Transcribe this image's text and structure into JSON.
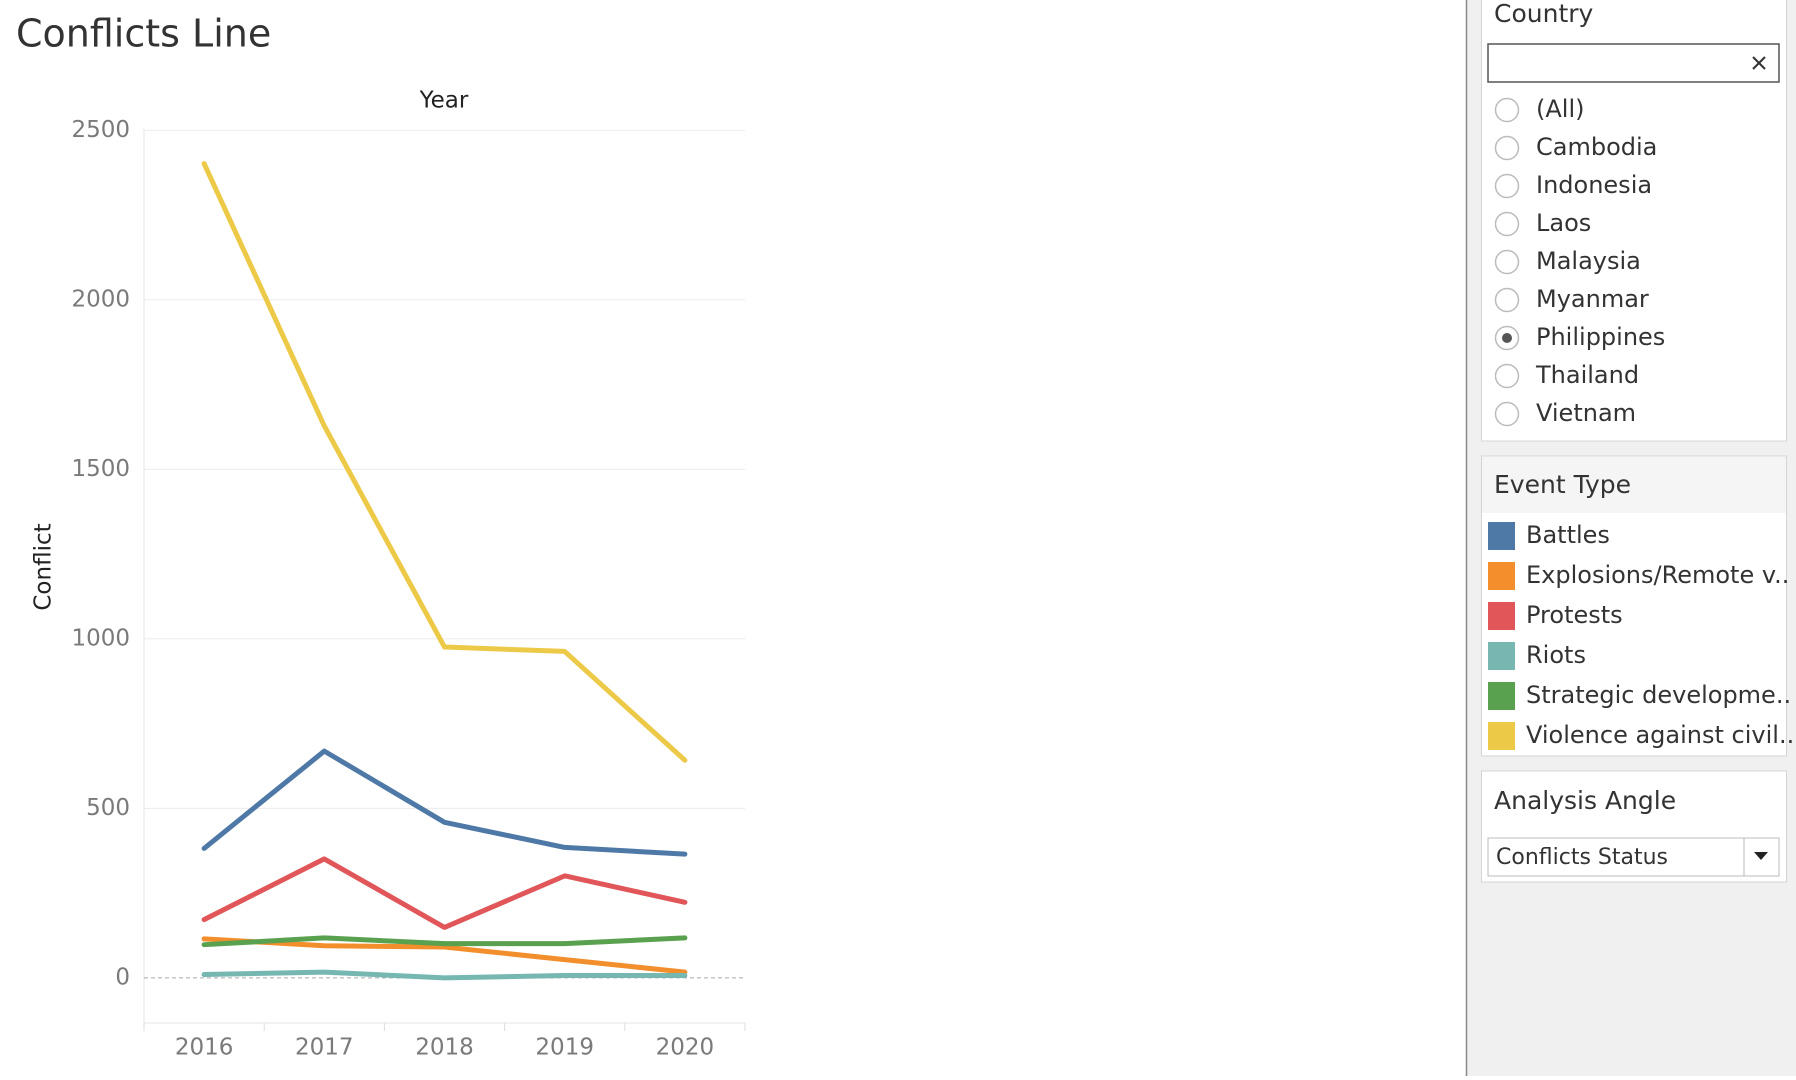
{
  "chart_data": {
    "type": "line",
    "title": "Conflicts Line",
    "column_header": "Year",
    "y_label": "Conflict",
    "categories": [
      "2016",
      "2017",
      "2018",
      "2019",
      "2020"
    ],
    "series": [
      {
        "name": "Battles",
        "color": "#4e79a7",
        "values": [
          382,
          669,
          459,
          385,
          365
        ]
      },
      {
        "name": "Explosions/Remote v..",
        "color": "#f28e2b",
        "values": [
          115,
          95,
          91,
          54,
          17
        ]
      },
      {
        "name": "Protests",
        "color": "#e15759",
        "values": [
          172,
          351,
          149,
          301,
          223
        ]
      },
      {
        "name": "Riots",
        "color": "#76b7b2",
        "values": [
          10,
          17,
          0,
          7,
          7
        ]
      },
      {
        "name": "Strategic developme..",
        "color": "#59a14f",
        "values": [
          98,
          118,
          101,
          101,
          118
        ]
      },
      {
        "name": "Violence against civil..",
        "color": "#edc948",
        "values": [
          2402,
          1628,
          976,
          963,
          642
        ]
      }
    ],
    "ylim": [
      -133,
      2504
    ],
    "yticks": [
      0,
      500,
      1000,
      1500,
      2000,
      2500
    ],
    "grid": true
  },
  "country_filter": {
    "title": "Country",
    "options": [
      "(All)",
      "Cambodia",
      "Indonesia",
      "Laos",
      "Malaysia",
      "Myanmar",
      "Philippines",
      "Thailand",
      "Vietnam"
    ],
    "selected": "Philippines"
  },
  "legend": {
    "title": "Event Type"
  },
  "analysis_angle": {
    "title": "Analysis Angle",
    "value": "Conflicts Status"
  }
}
